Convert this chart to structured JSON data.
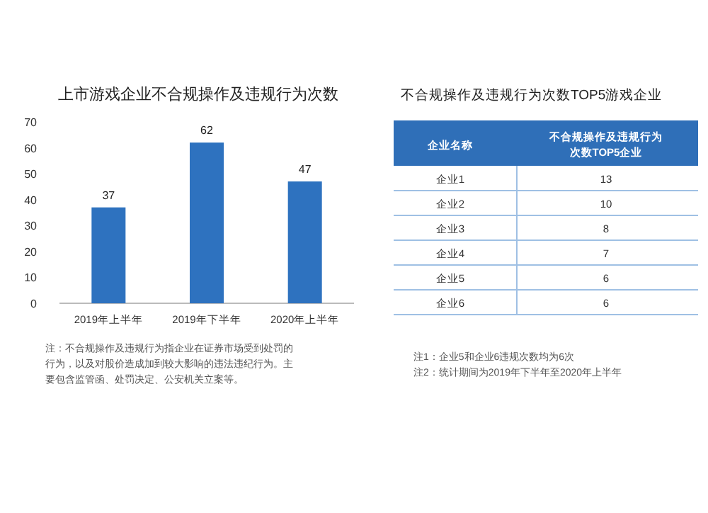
{
  "chart_data": [
    {
      "type": "bar",
      "title": "上市游戏企业不合规操作及违规行为次数",
      "categories": [
        "2019年上半年",
        "2019年下半年",
        "2020年上半年"
      ],
      "values": [
        37,
        62,
        47
      ],
      "color": "#2e72bf",
      "ylim": [
        0,
        70
      ],
      "yticks": [
        0,
        10,
        20,
        30,
        40,
        50,
        60,
        70
      ],
      "data_labels": true,
      "grid": false,
      "annotations": [
        "注：不合规操作及违规行为指企业在证券市场受到处罚的行为，以及对股价造成加到较大影响的违法违纪行为。主要包含监管函、处罚决定、公安机关立案等。"
      ]
    },
    {
      "type": "other",
      "title": "不合规操作及违规行为次数TOP5游戏企业",
      "xlabel": "企业名称",
      "ylabel": "不合规操作及违规行为次数TOP5企业",
      "categories": [
        "企业1",
        "企业2",
        "企业3",
        "企业4",
        "企业5",
        "企业6"
      ],
      "values": [
        13,
        10,
        8,
        7,
        6,
        6
      ],
      "data_labels": true,
      "color": "#2f6fb8",
      "annotations": [
        "注1：企业5和企业6违规次数均为6次",
        "注2：统计期间为2019年下半年至2020年上半年"
      ]
    }
  ]
}
